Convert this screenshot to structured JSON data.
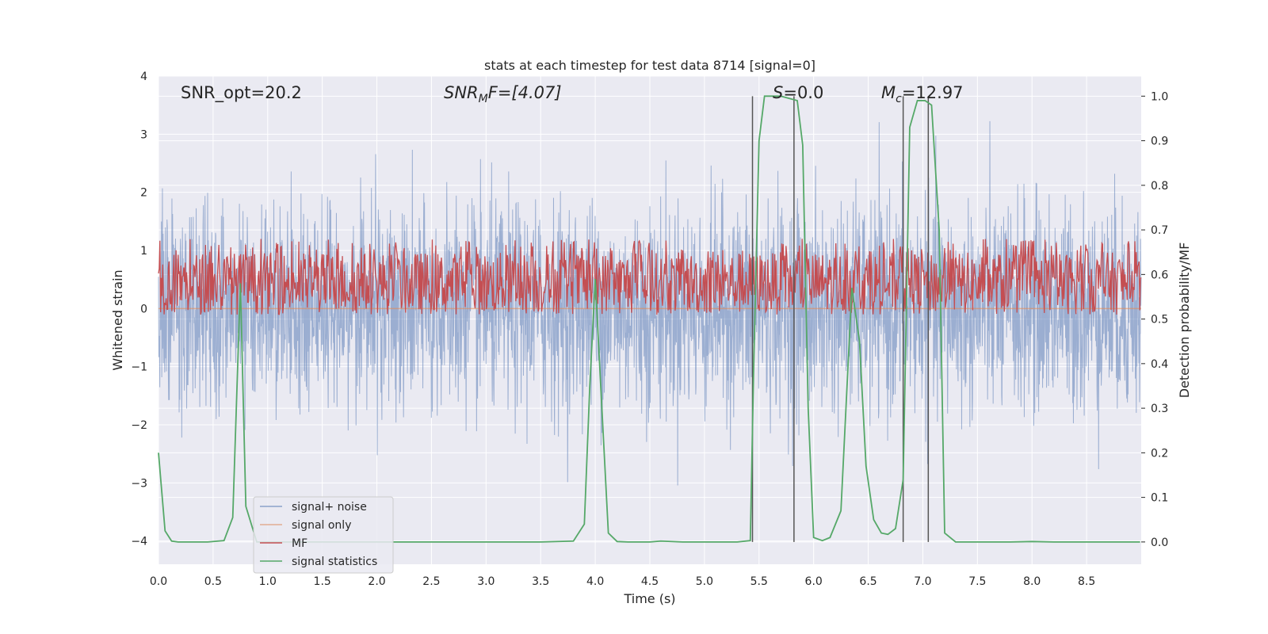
{
  "chart_data": {
    "type": "line",
    "title": "stats at each timestep for test data 8714 [signal=0]",
    "xlabel": "Time (s)",
    "ylabel": "Whitened strain",
    "y2label": "Detection probability/MF",
    "xlim": [
      0,
      9
    ],
    "ylim": [
      -4.4,
      4.0
    ],
    "y2lim": [
      -0.05,
      1.045
    ],
    "x_ticks": [
      "0.0",
      "0.5",
      "1.0",
      "1.5",
      "2.0",
      "2.5",
      "3.0",
      "3.5",
      "4.0",
      "4.5",
      "5.0",
      "5.5",
      "6.0",
      "6.5",
      "7.0",
      "7.5",
      "8.0",
      "8.5"
    ],
    "y_ticks": [
      "4",
      "3",
      "2",
      "1",
      "0",
      "−1",
      "−2",
      "−3",
      "−4"
    ],
    "y2_ticks": [
      "1.0",
      "0.9",
      "0.8",
      "0.7",
      "0.6",
      "0.5",
      "0.4",
      "0.3",
      "0.2",
      "0.1",
      "0.0"
    ],
    "grid": true,
    "legend_position": "lower-left",
    "annotations": {
      "snr_opt": "SNR_opt=20.2",
      "snr_mf_main": "SNR",
      "snr_mf_sub": "M",
      "snr_mf_rest": "F=[4.07]",
      "s_main": "S",
      "s_rest": "=0.0",
      "mc_main": "M",
      "mc_sub": "c",
      "mc_rest": "=12.97"
    },
    "series": [
      {
        "name": "signal+ noise",
        "color": "#4c72b0",
        "description_level": "noise band approximately between -2 and 2 with spikes up to 3.6 and down to -3.9"
      },
      {
        "name": "signal only",
        "color": "#dd8452",
        "values_constant": 0.0
      },
      {
        "name": "MF",
        "color": "#c44e52",
        "axis": "right",
        "band": [
          0.51,
          0.65
        ]
      },
      {
        "name": "signal statistics",
        "color": "#55a868",
        "axis": "right",
        "x": [
          0.0,
          0.06,
          0.12,
          0.18,
          0.3,
          0.45,
          0.6,
          0.68,
          0.75,
          0.8,
          0.9,
          1.0,
          1.2,
          1.5,
          2.0,
          2.5,
          3.0,
          3.5,
          3.8,
          3.9,
          3.95,
          4.0,
          4.05,
          4.12,
          4.2,
          4.3,
          4.5,
          4.6,
          4.8,
          5.0,
          5.3,
          5.42,
          5.45,
          5.5,
          5.55,
          5.7,
          5.85,
          5.9,
          5.95,
          6.0,
          6.08,
          6.15,
          6.25,
          6.35,
          6.42,
          6.48,
          6.55,
          6.62,
          6.68,
          6.75,
          6.82,
          6.88,
          6.95,
          7.02,
          7.08,
          7.15,
          7.2,
          7.3,
          7.5,
          7.8,
          8.0,
          8.2,
          8.5,
          8.99
        ],
        "y": [
          0.2,
          0.025,
          0.002,
          0.0,
          0.0,
          0.0,
          0.003,
          0.055,
          0.58,
          0.08,
          0.0,
          0.0,
          0.0,
          0.0,
          0.0,
          0.0,
          0.0,
          0.0,
          0.002,
          0.04,
          0.35,
          0.59,
          0.35,
          0.02,
          0.001,
          0.0,
          0.0,
          0.002,
          0.0,
          0.0,
          0.0,
          0.003,
          0.38,
          0.9,
          1.0,
          1.0,
          0.99,
          0.89,
          0.3,
          0.01,
          0.003,
          0.01,
          0.07,
          0.57,
          0.45,
          0.17,
          0.05,
          0.02,
          0.017,
          0.03,
          0.14,
          0.93,
          0.99,
          0.99,
          0.98,
          0.7,
          0.02,
          0.0,
          0.0,
          0.0,
          0.001,
          0.0,
          0.0,
          0.0
        ]
      }
    ],
    "vertical_lines_x": [
      5.44,
      5.82,
      6.82,
      7.05
    ]
  }
}
